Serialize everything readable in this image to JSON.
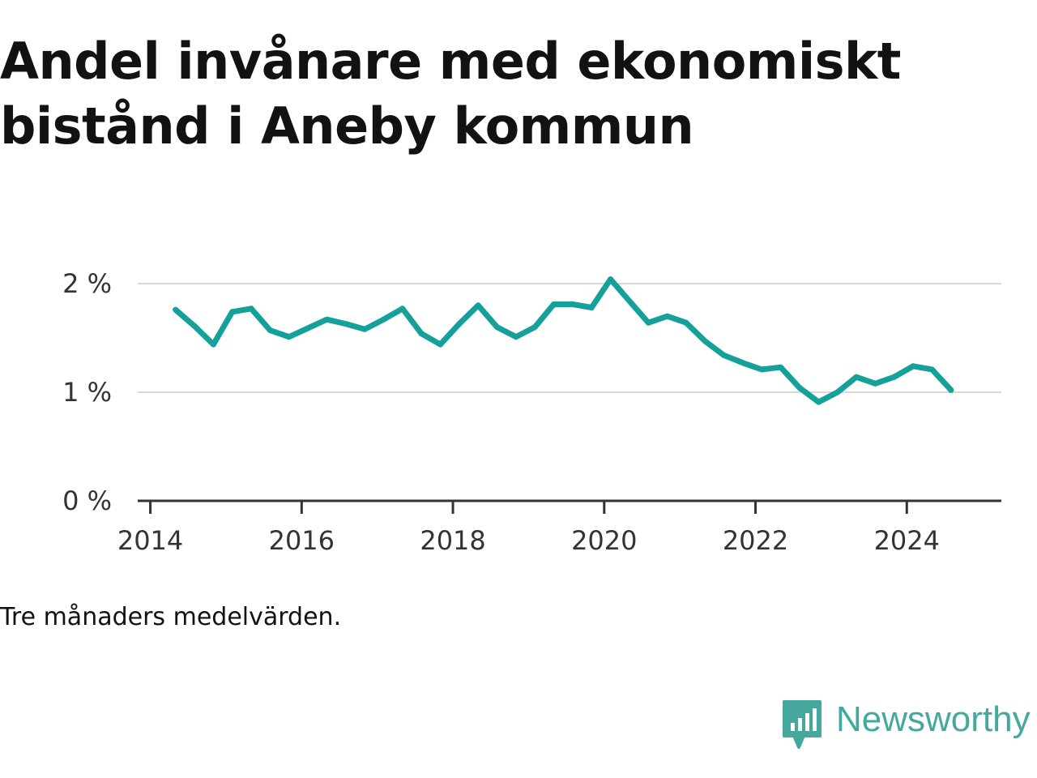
{
  "title": "Andel invånare med ekonomiskt bistånd i Aneby kommun",
  "footnote": "Tre månaders medelvärden.",
  "brand": {
    "name": "Newsworthy",
    "color": "#44A99C"
  },
  "line_color": "#16A09A",
  "chart_data": {
    "type": "line",
    "title": "Andel invånare med ekonomiskt bistånd i Aneby kommun",
    "xlabel": "",
    "ylabel": "",
    "x_ticks": [
      "2014",
      "2016",
      "2018",
      "2020",
      "2022",
      "2024"
    ],
    "y_ticks": [
      "0 %",
      "1 %",
      "2 %"
    ],
    "xlim": [
      "2013-11",
      "2025-04"
    ],
    "ylim": [
      0,
      2
    ],
    "grid": true,
    "series": [
      {
        "x": [
          "2014-05",
          "2014-08",
          "2014-11",
          "2015-02",
          "2015-05",
          "2015-08",
          "2015-11",
          "2016-02",
          "2016-05",
          "2016-08",
          "2016-11",
          "2017-02",
          "2017-05",
          "2017-08",
          "2017-11",
          "2018-02",
          "2018-05",
          "2018-08",
          "2018-11",
          "2019-02",
          "2019-05",
          "2019-08",
          "2019-11",
          "2020-02",
          "2020-05",
          "2020-08",
          "2020-11",
          "2021-02",
          "2021-05",
          "2021-08",
          "2021-11",
          "2022-02",
          "2022-05",
          "2022-08",
          "2022-11",
          "2023-02",
          "2023-05",
          "2023-08",
          "2023-11",
          "2024-02",
          "2024-05",
          "2024-08"
        ],
        "values": [
          1.76,
          1.61,
          1.44,
          1.74,
          1.77,
          1.57,
          1.51,
          1.59,
          1.67,
          1.63,
          1.58,
          1.67,
          1.77,
          1.54,
          1.44,
          1.63,
          1.8,
          1.6,
          1.51,
          1.6,
          1.81,
          1.81,
          1.78,
          2.04,
          1.84,
          1.64,
          1.7,
          1.64,
          1.47,
          1.34,
          1.27,
          1.21,
          1.23,
          1.04,
          0.91,
          1.0,
          1.14,
          1.08,
          1.14,
          1.24,
          1.21,
          1.02
        ]
      }
    ]
  }
}
